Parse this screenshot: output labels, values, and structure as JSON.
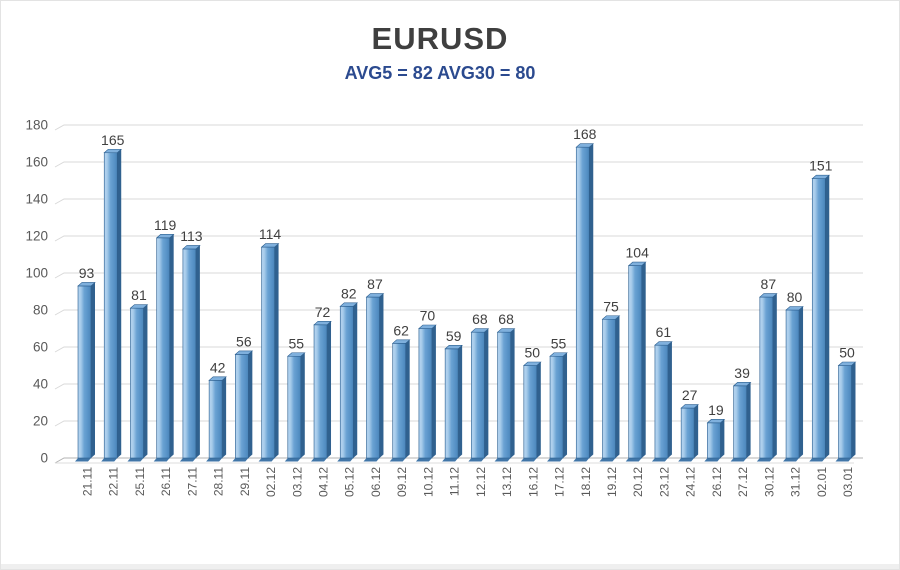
{
  "page": {
    "title": "EURUSD",
    "subtitle": "AVG5 = 82 AVG30 = 80"
  },
  "chart_data": {
    "type": "bar",
    "title": "EURUSD",
    "subtitle": "AVG5 = 82 AVG30 = 80",
    "categories": [
      "21.11",
      "22.11",
      "25.11",
      "26.11",
      "27.11",
      "28.11",
      "29.11",
      "02.12",
      "03.12",
      "04.12",
      "05.12",
      "06.12",
      "09.12",
      "10.12",
      "11.12",
      "12.12",
      "13.12",
      "16.12",
      "17.12",
      "18.12",
      "19.12",
      "20.12",
      "23.12",
      "24.12",
      "26.12",
      "27.12",
      "30.12",
      "31.12",
      "02.01",
      "03.01"
    ],
    "values": [
      93,
      165,
      81,
      119,
      113,
      42,
      56,
      114,
      55,
      72,
      82,
      87,
      62,
      70,
      59,
      68,
      68,
      50,
      55,
      168,
      75,
      104,
      61,
      27,
      19,
      39,
      87,
      80,
      151,
      50
    ],
    "avg5": 82,
    "avg30": 80,
    "xlabel": "",
    "ylabel": "",
    "ylim": [
      0,
      180
    ],
    "yticks": [
      0,
      20,
      40,
      60,
      80,
      100,
      120,
      140,
      160,
      180
    ],
    "grid": true,
    "legend": "none",
    "colors": {
      "bar_face_light": "#a6cbea",
      "bar_face_mid": "#6aa2d3",
      "bar_face_dark": "#5590c5",
      "bar_edge": "#2c5f90",
      "bar_top": "#7fb0dd",
      "bar_side": "#30618f",
      "bar_foot": "#4176a8",
      "gridline": "#d9d9d9",
      "baseline": "#b3b3b3",
      "floor_line": "#dcdcdc",
      "value_label": "#404040",
      "axis_label": "#595959",
      "title": "#3f3f3f",
      "subtitle": "#2b4a8f"
    }
  }
}
